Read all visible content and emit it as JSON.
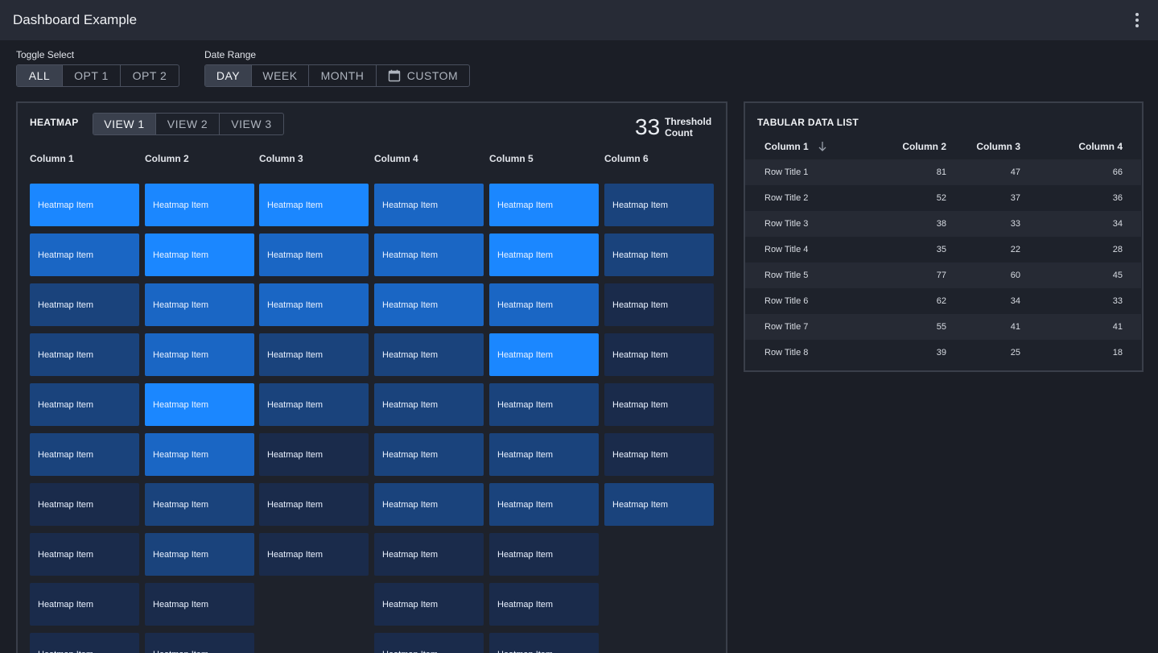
{
  "app": {
    "title": "Dashboard Example",
    "menu_icon": "kebab-icon"
  },
  "toggle_select": {
    "label": "Toggle Select",
    "options": [
      "ALL",
      "OPT 1",
      "OPT 2"
    ],
    "selected": "ALL"
  },
  "date_range": {
    "label": "Date Range",
    "options": [
      "DAY",
      "WEEK",
      "MONTH",
      "CUSTOM"
    ],
    "selected": "DAY",
    "custom_icon": "calendar-icon"
  },
  "heatmap": {
    "title": "HEATMAP",
    "views": [
      "VIEW 1",
      "VIEW 2",
      "VIEW 3"
    ],
    "selected_view": "VIEW 1",
    "threshold_value": "33",
    "threshold_label_1": "Threshold",
    "threshold_label_2": "Count",
    "columns": [
      "Column 1",
      "Column 2",
      "Column 3",
      "Column 4",
      "Column 5",
      "Column 6"
    ],
    "item_label": "Heatmap Item",
    "levels": [
      [
        4,
        4,
        4,
        3,
        4,
        2
      ],
      [
        3,
        4,
        3,
        3,
        4,
        2
      ],
      [
        2,
        3,
        3,
        3,
        3,
        1
      ],
      [
        2,
        3,
        2,
        2,
        4,
        1
      ],
      [
        2,
        4,
        2,
        2,
        2,
        1
      ],
      [
        2,
        3,
        1,
        2,
        2,
        1
      ],
      [
        1,
        2,
        1,
        2,
        2,
        2
      ],
      [
        1,
        2,
        1,
        1,
        1,
        0
      ],
      [
        1,
        1,
        0,
        1,
        1,
        0
      ],
      [
        1,
        1,
        0,
        1,
        1,
        0
      ]
    ],
    "colors": [
      "",
      "#1a2b4b",
      "#1a437c",
      "#1a66c4",
      "#1b87ff"
    ]
  },
  "table": {
    "title": "TABULAR DATA LIST",
    "headers": [
      "Column 1",
      "Column 2",
      "Column 3",
      "Column 4"
    ],
    "sort_icon": "arrow-down-icon",
    "rows": [
      {
        "title": "Row Title 1",
        "c2": "81",
        "c3": "47",
        "c4": "66"
      },
      {
        "title": "Row Title 2",
        "c2": "52",
        "c3": "37",
        "c4": "36"
      },
      {
        "title": "Row Title 3",
        "c2": "38",
        "c3": "33",
        "c4": "34"
      },
      {
        "title": "Row Title 4",
        "c2": "35",
        "c3": "22",
        "c4": "28"
      },
      {
        "title": "Row Title 5",
        "c2": "77",
        "c3": "60",
        "c4": "45"
      },
      {
        "title": "Row Title 6",
        "c2": "62",
        "c3": "34",
        "c4": "33"
      },
      {
        "title": "Row Title 7",
        "c2": "55",
        "c3": "41",
        "c4": "41"
      },
      {
        "title": "Row Title 8",
        "c2": "39",
        "c3": "25",
        "c4": "18"
      }
    ]
  }
}
